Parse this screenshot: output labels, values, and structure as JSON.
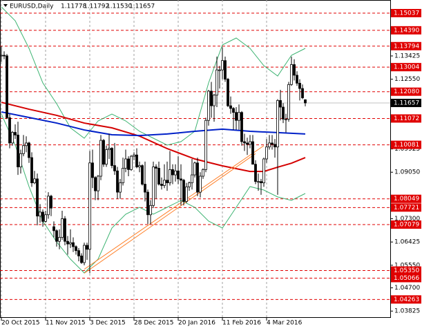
{
  "chart_data": {
    "type": "candlestick",
    "title": "EURUSD,Daily",
    "quote": [
      "1.11778",
      "1.11792",
      "1.11530",
      "1.11657"
    ],
    "ylim": [
      1.0357,
      1.1553
    ],
    "yticks": [
      1.13425,
      {
        "value": 1.1255,
        "label": "1.12550"
      },
      1.09925,
      {
        "value": 1.0905,
        "label": "1.09050"
      },
      {
        "value": 1.073,
        "label": "1.07300"
      },
      1.06425,
      {
        "value": 1.0555,
        "label": "1.05550"
      },
      {
        "value": 1.047,
        "label": "1.04700"
      },
      1.03825
    ],
    "levels": [
      1.15037,
      {
        "value": 1.1439,
        "label": "1.14390"
      },
      1.13794,
      1.13004,
      {
        "value": 1.1208,
        "label": "1.12080"
      },
      1.11072,
      1.10081,
      1.08049,
      1.07721,
      1.07079,
      {
        "value": 1.0535,
        "label": "1.05350"
      },
      1.05066,
      1.04263
    ],
    "level_color": "#e00000",
    "current": 1.11657,
    "categories": [
      "20 Oct 2015",
      null,
      null,
      null,
      null,
      null,
      null,
      null,
      null,
      null,
      null,
      null,
      null,
      null,
      null,
      null,
      "11 Nov 2015",
      null,
      null,
      null,
      null,
      null,
      null,
      null,
      null,
      null,
      null,
      null,
      null,
      null,
      null,
      null,
      "3 Dec 2015",
      null,
      null,
      null,
      null,
      null,
      null,
      null,
      null,
      null,
      null,
      null,
      null,
      null,
      null,
      null,
      "28 Dec 2015",
      null,
      null,
      null,
      null,
      null,
      null,
      null,
      null,
      null,
      null,
      null,
      null,
      null,
      null,
      null,
      "20 Jan 2016",
      null,
      null,
      null,
      null,
      null,
      null,
      null,
      null,
      null,
      null,
      null,
      null,
      null,
      null,
      null,
      "11 Feb 2016",
      null,
      null,
      null,
      null,
      null,
      null,
      null,
      null,
      null,
      null,
      null,
      null,
      null,
      null,
      null,
      "4 Mar 2016",
      null,
      null,
      null,
      null,
      null,
      null,
      null,
      null,
      null,
      null,
      null,
      null,
      null,
      null
    ],
    "ohlc": [
      [
        1.1345,
        1.138,
        1.132,
        1.1345
      ],
      [
        1.1345,
        1.136,
        1.133,
        1.1343
      ],
      [
        1.1343,
        1.135,
        1.1105,
        1.111
      ],
      [
        1.111,
        1.1125,
        1.0995,
        1.1015
      ],
      [
        1.1015,
        1.106,
        1.1005,
        1.1055
      ],
      [
        1.1055,
        1.1085,
        1.103,
        1.1045
      ],
      [
        1.1045,
        1.1095,
        1.0895,
        1.0925
      ],
      [
        1.0925,
        1.099,
        1.09,
        1.0975
      ],
      [
        1.0975,
        1.1045,
        1.0965,
        1.1005
      ],
      [
        1.1005,
        1.104,
        1.098,
        1.1015
      ],
      [
        1.1015,
        1.102,
        1.094,
        1.096
      ],
      [
        1.096,
        1.098,
        1.085,
        1.0865
      ],
      [
        1.0865,
        1.091,
        1.086,
        1.088
      ],
      [
        1.088,
        1.09,
        1.0705,
        1.074
      ],
      [
        1.074,
        1.0785,
        1.0715,
        1.0755
      ],
      [
        1.0755,
        1.0765,
        1.07,
        1.072
      ],
      [
        1.072,
        1.076,
        1.0715,
        1.0745
      ],
      [
        1.0745,
        1.083,
        1.073,
        1.0815
      ],
      [
        1.0815,
        1.082,
        1.074,
        1.077
      ],
      [
        1.07,
        1.072,
        1.066,
        1.0685
      ],
      [
        1.0685,
        1.069,
        1.0625,
        1.0645
      ],
      [
        1.0645,
        1.069,
        1.0615,
        1.066
      ],
      [
        1.066,
        1.076,
        1.065,
        1.073
      ],
      [
        1.073,
        1.074,
        1.063,
        1.0645
      ],
      [
        1.0645,
        1.0665,
        1.0595,
        1.0635
      ],
      [
        1.0635,
        1.069,
        1.062,
        1.064
      ],
      [
        1.064,
        1.066,
        1.0605,
        1.0625
      ],
      [
        1.0625,
        1.063,
        1.0595,
        1.061
      ],
      [
        1.061,
        1.062,
        1.057,
        1.059
      ],
      [
        1.059,
        1.06,
        1.056,
        1.0565
      ],
      [
        1.0565,
        1.064,
        1.0555,
        1.063
      ],
      [
        1.063,
        1.064,
        1.0575,
        1.0615
      ],
      [
        1.0615,
        1.0985,
        1.0525,
        1.094
      ],
      [
        1.094,
        1.099,
        1.0845,
        1.0885
      ],
      [
        1.0885,
        1.089,
        1.08,
        1.0835
      ],
      [
        1.0835,
        1.0895,
        1.08,
        1.089
      ],
      [
        1.089,
        1.1045,
        1.0875,
        1.1025
      ],
      [
        1.1025,
        1.103,
        1.0925,
        1.0935
      ],
      [
        1.0935,
        1.1005,
        1.0925,
        1.099
      ],
      [
        1.099,
        1.105,
        1.0955,
        1.0995
      ],
      [
        1.0995,
        1.1,
        1.092,
        1.093
      ],
      [
        1.093,
        1.1015,
        1.0895,
        1.091
      ],
      [
        1.091,
        1.0925,
        1.0805,
        1.083
      ],
      [
        1.083,
        1.088,
        1.0805,
        1.0865
      ],
      [
        1.0865,
        1.096,
        1.0855,
        1.092
      ],
      [
        1.092,
        1.099,
        1.0905,
        1.0955
      ],
      [
        1.0955,
        1.0965,
        1.089,
        1.0915
      ],
      [
        1.0915,
        1.097,
        1.091,
        1.0965
      ],
      [
        1.0965,
        1.098,
        1.095,
        1.097
      ],
      [
        1.097,
        1.0995,
        1.092,
        1.0925
      ],
      [
        1.0925,
        1.0945,
        1.0905,
        1.093
      ],
      [
        1.093,
        1.0935,
        1.0855,
        1.086
      ],
      [
        1.086,
        1.0945,
        1.0795,
        1.083
      ],
      [
        1.083,
        1.084,
        1.071,
        1.0745
      ],
      [
        1.0745,
        1.08,
        1.071,
        1.078
      ],
      [
        1.078,
        1.0945,
        1.077,
        1.0925
      ],
      [
        1.0925,
        1.0935,
        1.0805,
        1.092
      ],
      [
        1.092,
        1.0945,
        1.0855,
        1.086
      ],
      [
        1.086,
        1.0885,
        1.084,
        1.0855
      ],
      [
        1.0855,
        1.0935,
        1.0845,
        1.0875
      ],
      [
        1.0875,
        1.0945,
        1.0835,
        1.0865
      ],
      [
        1.0865,
        1.0985,
        1.0855,
        1.0915
      ],
      [
        1.0915,
        1.0935,
        1.086,
        1.0895
      ],
      [
        1.0895,
        1.0935,
        1.087,
        1.091
      ],
      [
        1.091,
        1.0965,
        1.086,
        1.088
      ],
      [
        1.088,
        1.0935,
        1.078,
        1.0875
      ],
      [
        1.0875,
        1.088,
        1.078,
        1.0795
      ],
      [
        1.0795,
        1.0865,
        1.079,
        1.085
      ],
      [
        1.085,
        1.087,
        1.0835,
        1.0865
      ],
      [
        1.0865,
        1.0955,
        1.084,
        1.0895
      ],
      [
        1.0895,
        1.0945,
        1.0885,
        1.094
      ],
      [
        1.094,
        1.096,
        1.0815,
        1.083
      ],
      [
        1.083,
        1.0905,
        1.081,
        1.089
      ],
      [
        1.089,
        1.092,
        1.088,
        1.0915
      ],
      [
        1.0915,
        1.111,
        1.0905,
        1.11
      ],
      [
        1.11,
        1.1215,
        1.108,
        1.121
      ],
      [
        1.121,
        1.1245,
        1.111,
        1.1155
      ],
      [
        1.1155,
        1.12,
        1.1095,
        1.1195
      ],
      [
        1.1195,
        1.134,
        1.115,
        1.129
      ],
      [
        1.129,
        1.1305,
        1.122,
        1.129
      ],
      [
        1.129,
        1.1375,
        1.1255,
        1.1325
      ],
      [
        1.1325,
        1.134,
        1.1245,
        1.1255
      ],
      [
        1.1255,
        1.126,
        1.115,
        1.1155
      ],
      [
        1.1155,
        1.119,
        1.1125,
        1.1145
      ],
      [
        1.1145,
        1.115,
        1.1065,
        1.113
      ],
      [
        1.113,
        1.115,
        1.1065,
        1.11
      ],
      [
        1.11,
        1.116,
        1.1065,
        1.113
      ],
      [
        1.113,
        1.1135,
        1.1005,
        1.102
      ],
      [
        1.102,
        1.105,
        1.0985,
        1.1015
      ],
      [
        1.1015,
        1.1035,
        1.097,
        1.101
      ],
      [
        1.101,
        1.1045,
        1.0995,
        1.102
      ],
      [
        1.102,
        1.1045,
        1.0935,
        1.0935
      ],
      [
        1.0935,
        1.095,
        1.086,
        1.087
      ],
      [
        1.087,
        1.09,
        1.0835,
        1.087
      ],
      [
        1.087,
        1.088,
        1.082,
        1.0865
      ],
      [
        1.0865,
        1.096,
        1.085,
        1.0955
      ],
      [
        1.0955,
        1.103,
        1.094,
        1.1
      ],
      [
        1.1,
        1.1045,
        1.099,
        1.1015
      ],
      [
        1.1015,
        1.1045,
        1.099,
        1.101
      ],
      [
        1.101,
        1.103,
        1.096,
        1.1
      ],
      [
        1.1,
        1.118,
        1.082,
        1.1175
      ],
      [
        1.1175,
        1.1215,
        1.11,
        1.115
      ],
      [
        1.115,
        1.1165,
        1.109,
        1.1105
      ],
      [
        1.1105,
        1.1125,
        1.1055,
        1.1105
      ],
      [
        1.1105,
        1.1245,
        1.1095,
        1.1235
      ],
      [
        1.1235,
        1.134,
        1.123,
        1.131
      ],
      [
        1.131,
        1.133,
        1.125,
        1.127
      ],
      [
        1.127,
        1.1285,
        1.123,
        1.124
      ],
      [
        1.124,
        1.1255,
        1.1175,
        1.122
      ],
      [
        1.122,
        1.1235,
        1.118,
        1.1185
      ],
      [
        1.11778,
        1.11792,
        1.1153,
        1.11657
      ]
    ],
    "lines": [
      {
        "color": "#3cb371",
        "x": [
          0,
          5,
          10,
          15,
          20,
          25,
          30,
          35,
          40,
          45,
          50,
          55,
          60,
          65,
          70,
          75,
          80,
          85,
          90,
          95,
          100,
          105,
          110
        ],
        "values": [
          1.1527,
          1.1475,
          1.1371,
          1.1241,
          1.1163,
          1.1072,
          1.1033,
          1.1098,
          1.1124,
          1.1098,
          1.1059,
          1.1033,
          1.1007,
          1.102,
          1.1059,
          1.1241,
          1.1384,
          1.141,
          1.1371,
          1.1306,
          1.1267,
          1.1345,
          1.1371
        ]
      },
      {
        "color": "#3cb371",
        "x": [
          0,
          5,
          10,
          15,
          20,
          25,
          30,
          35,
          40,
          45,
          50,
          55,
          60,
          65,
          70,
          75,
          80,
          85,
          90,
          95,
          100,
          105,
          110
        ],
        "values": [
          1.1124,
          1.1007,
          1.0851,
          1.0721,
          1.0643,
          1.0578,
          1.0526,
          1.0578,
          1.0695,
          1.0747,
          1.0773,
          1.0747,
          1.0773,
          1.0799,
          1.0773,
          1.0721,
          1.0695,
          1.0773,
          1.0851,
          1.0838,
          1.0812,
          1.0799,
          1.0825
        ]
      },
      {
        "color": "#d40000",
        "x": [
          0,
          10,
          20,
          30,
          40,
          50,
          60,
          70,
          80,
          90,
          95,
          100,
          105,
          110
        ],
        "values": [
          1.1168,
          1.1142,
          1.1119,
          1.109,
          1.1072,
          1.1041,
          1.0994,
          1.0955,
          1.0929,
          1.0908,
          1.0908,
          1.0924,
          1.0939,
          1.096
        ]
      },
      {
        "color": "#0020c8",
        "x": [
          0,
          10,
          20,
          30,
          40,
          50,
          60,
          70,
          80,
          90,
          100,
          110
        ],
        "values": [
          1.1132,
          1.1111,
          1.109,
          1.1064,
          1.1046,
          1.1043,
          1.1049,
          1.1059,
          1.1067,
          1.1059,
          1.1054,
          1.1049
        ]
      },
      {
        "color": "#ff7f27",
        "x": [
          30,
          95
        ],
        "values": [
          1.054,
          1.1005
        ]
      },
      {
        "color": "#ff7f27",
        "x": [
          30,
          92
        ],
        "values": [
          1.0525,
          1.0975
        ]
      }
    ]
  }
}
